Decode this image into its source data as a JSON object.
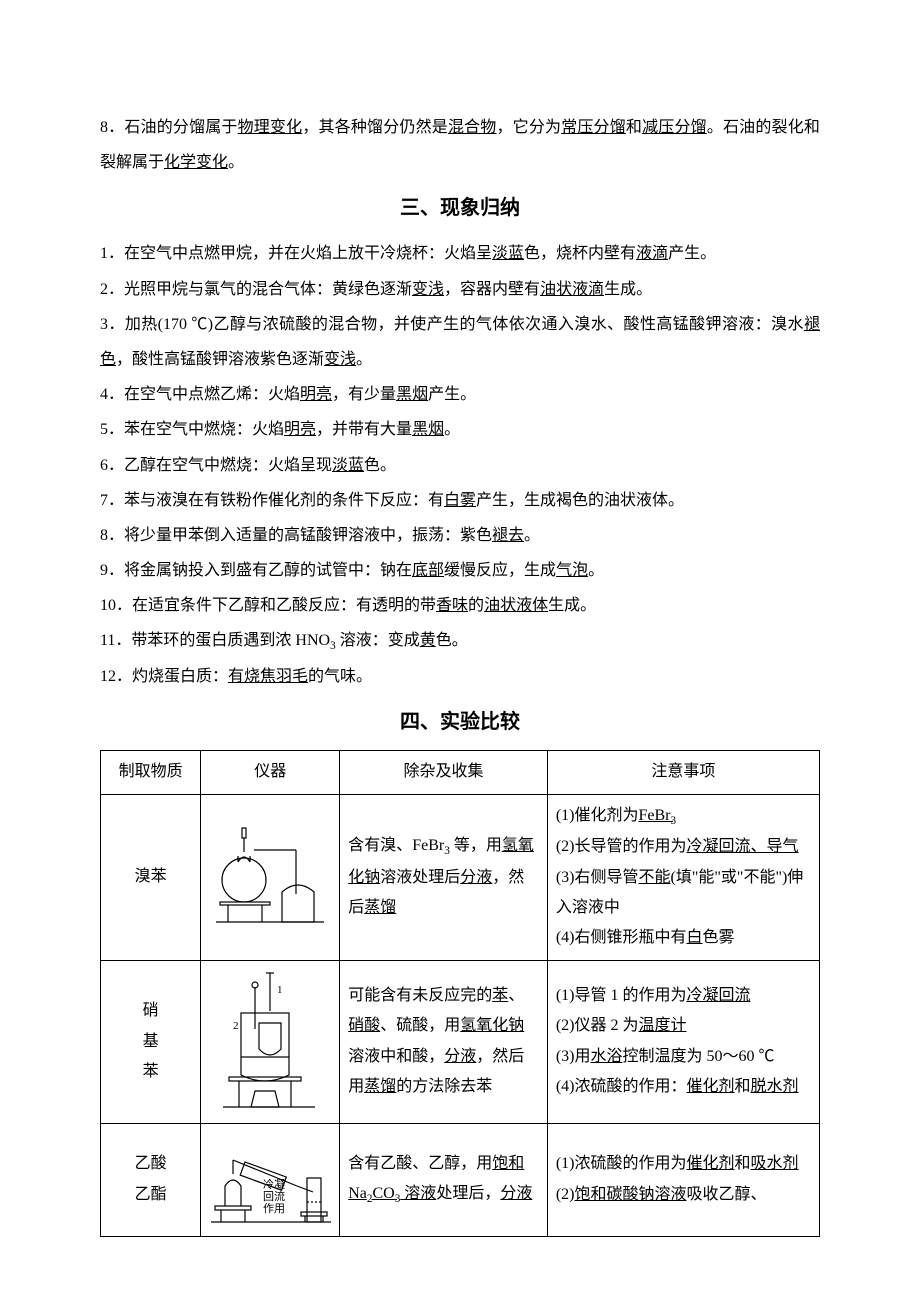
{
  "intro": {
    "num": "8．",
    "t1": "石油的分馏属于",
    "u1": "物理变化",
    "t2": "，其各种馏分仍然是",
    "u2": "混合物",
    "t3": "，它分为",
    "u3": "常压分馏",
    "t4": "和",
    "u4": "减压分馏",
    "t5": "。石油的裂化和裂解属于",
    "u5": "化学变化",
    "t6": "。"
  },
  "section3_title": "三、现象归纳",
  "phenomena": [
    {
      "n": "1．",
      "parts": [
        "在空气中点燃甲烷，并在火焰上放干冷烧杯：火焰呈",
        {
          "u": "淡蓝"
        },
        "色，烧杯内壁有",
        {
          "u": "液滴"
        },
        "产生。"
      ]
    },
    {
      "n": "2．",
      "parts": [
        "光照甲烷与氯气的混合气体：黄绿色逐渐",
        {
          "u": "变浅"
        },
        "，容器内壁有",
        {
          "u": "油状液滴"
        },
        "生成。"
      ]
    },
    {
      "n": "3．",
      "parts": [
        "加热(170 ℃)乙醇与浓硫酸的混合物，并使产生的气体依次通入溴水、酸性高锰酸钾溶液：溴水",
        {
          "u": "褪色"
        },
        "，酸性高锰酸钾溶液紫色逐渐",
        {
          "u": "变浅"
        },
        "。"
      ]
    },
    {
      "n": "4．",
      "parts": [
        "在空气中点燃乙烯：火焰",
        {
          "u": "明亮"
        },
        "，有少量",
        {
          "u": "黑烟"
        },
        "产生。"
      ]
    },
    {
      "n": "5．",
      "parts": [
        "苯在空气中燃烧：火焰",
        {
          "u": "明亮"
        },
        "，并带有大量",
        {
          "u": "黑烟"
        },
        "。"
      ]
    },
    {
      "n": "6．",
      "parts": [
        "乙醇在空气中燃烧：火焰呈现",
        {
          "u": "淡蓝"
        },
        "色。"
      ]
    },
    {
      "n": "7．",
      "parts": [
        "苯与液溴在有铁粉作催化剂的条件下反应：有",
        {
          "u": "白雾"
        },
        "产生，生成褐色的油状液体。"
      ]
    },
    {
      "n": "8．",
      "parts": [
        "将少量甲苯倒入适量的高锰酸钾溶液中，振荡：紫色",
        {
          "u": "褪去"
        },
        "。"
      ]
    },
    {
      "n": "9．",
      "parts": [
        "将金属钠投入到盛有乙醇的试管中：钠在",
        {
          "u": "底部"
        },
        "缓慢反应，生成",
        {
          "u": "气泡"
        },
        "。"
      ]
    },
    {
      "n": "10．",
      "parts": [
        "在适宜条件下乙醇和乙酸反应：有透明的带",
        {
          "u": "香味"
        },
        "的",
        {
          "u": "油状液体"
        },
        "生成。"
      ]
    },
    {
      "n": "11．",
      "parts": [
        "带苯环的蛋白质遇到浓 HNO",
        {
          "sub": "3"
        },
        " 溶液：变成",
        {
          "u": "黄"
        },
        "色。"
      ]
    },
    {
      "n": "12．",
      "parts": [
        "灼烧蛋白质：",
        {
          "u": "有烧焦羽毛"
        },
        "的气味。"
      ]
    }
  ],
  "section4_title": "四、实验比较",
  "table": {
    "headers": [
      "制取物质",
      "仪器",
      "除杂及收集",
      "注意事项"
    ],
    "col_widths": [
      "14%",
      "19%",
      "29%",
      "38%"
    ],
    "rows": [
      {
        "substance": "溴苯",
        "apparatus_svg": "bromobenzene",
        "purify": [
          "含有溴、FeBr",
          {
            "sub": "3"
          },
          " 等，用",
          {
            "u": "氢氧化钠"
          },
          "溶液处理后",
          {
            "u": "分液"
          },
          "，然后",
          {
            "u": "蒸馏"
          }
        ],
        "notes": [
          [
            "(1)催化剂为",
            {
              "u_chem": [
                "FeBr",
                "3"
              ]
            }
          ],
          [
            "(2)长导管的作用为",
            {
              "u": "冷凝回流、导气"
            }
          ],
          [
            "(3)右侧导管",
            {
              "u": "不能"
            },
            "(填\"能\"或\"不能\")伸入溶液中"
          ],
          [
            "(4)右侧锥形瓶中有",
            {
              "u": "白"
            },
            "色雾"
          ]
        ]
      },
      {
        "substance_vertical": [
          "硝",
          "基",
          "苯"
        ],
        "apparatus_svg": "nitrobenzene",
        "purify": [
          "可能含有未反应完的",
          {
            "u": "苯"
          },
          "、",
          {
            "u": "硝酸"
          },
          "、硫酸，用",
          {
            "u": "氢氧化钠"
          },
          "溶液中和酸，",
          {
            "u": "分液"
          },
          "，然后用",
          {
            "u": "蒸馏"
          },
          "的方法除去苯"
        ],
        "notes": [
          [
            "(1)导管 1 的作用为",
            {
              "u": "冷凝回流"
            }
          ],
          [
            "(2)仪器 2 为",
            {
              "u": "温度计"
            }
          ],
          [
            "(3)用",
            {
              "u": "水浴"
            },
            "控制温度为 50～60 ℃"
          ],
          [
            "(4)浓硫酸的作用：",
            {
              "u": "催化剂"
            },
            "和",
            {
              "u": "脱水剂"
            }
          ]
        ]
      },
      {
        "substance_vertical": [
          "乙酸",
          "乙酯"
        ],
        "apparatus_svg": "ethyl-acetate",
        "apparatus_labels": [
          "冷凝",
          "回流",
          "作用"
        ],
        "purify": [
          "含有乙酸、乙醇，用",
          {
            "u_chem_line": [
              "饱和 Na",
              "2",
              "CO",
              "3",
              " 溶液"
            ]
          },
          "处理后，",
          {
            "u": "分液"
          }
        ],
        "notes": [
          [
            "(1)浓硫酸的作用为",
            {
              "u": "催化剂"
            },
            "和",
            {
              "u": "吸水剂"
            }
          ],
          [
            "(2)",
            {
              "u": "饱和碳酸钠溶液"
            },
            "吸收乙醇、"
          ]
        ]
      }
    ]
  }
}
